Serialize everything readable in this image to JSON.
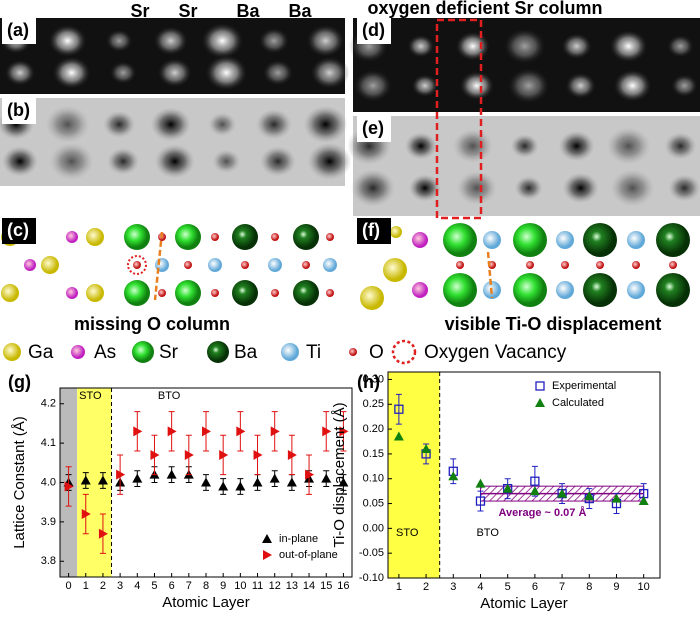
{
  "panels": [
    "(a)",
    "(b)",
    "(c)",
    "(d)",
    "(e)",
    "(f)"
  ],
  "column_labels": [
    "Sr",
    "Sr",
    "Ba",
    "Ba"
  ],
  "captions": {
    "top_right": "oxygen deficient Sr column",
    "left": "missing O column",
    "right": "visible Ti-O displacement"
  },
  "legend": [
    {
      "label": "Ga",
      "color": "#e8d800"
    },
    {
      "label": "As",
      "color": "#e040e0"
    },
    {
      "label": "Sr",
      "color": "#30e030"
    },
    {
      "label": "Ba",
      "color": "#106010"
    },
    {
      "label": "Ti",
      "color": "#80c0e8"
    },
    {
      "label": "O",
      "color": "#e02020"
    },
    {
      "label": "Oxygen Vacancy",
      "color": "#e02020"
    }
  ],
  "chart_data": [
    {
      "type": "scatter",
      "panel": "(g)",
      "x_label": "Atomic Layer",
      "y_label": "Lattice Constant (Å)",
      "x": [
        0,
        1,
        2,
        3,
        4,
        5,
        6,
        7,
        8,
        9,
        10,
        11,
        12,
        13,
        14,
        15,
        16
      ],
      "xlim": [
        -0.5,
        16.5
      ],
      "xticks": [
        0,
        1,
        2,
        3,
        4,
        5,
        6,
        7,
        8,
        9,
        10,
        11,
        12,
        13,
        14,
        15,
        16
      ],
      "ylim": [
        3.76,
        4.24
      ],
      "yticks": [
        3.8,
        3.9,
        {
          "value": 4.0,
          "label": "4.0"
        },
        4.1,
        4.2
      ],
      "regions": [
        {
          "xlim": [
            -0.5,
            0.5
          ],
          "color": "#bbbbbb"
        },
        {
          "xlim": [
            0.5,
            2.5
          ],
          "color": "#ffff66",
          "label": "STO",
          "dashed": true
        }
      ],
      "annotation": "BTO",
      "legend_corner": "lower right",
      "series": [
        {
          "name": "in-plane",
          "color": "#000000",
          "marker": "triangle-up",
          "values": [
            4.0,
            4.005,
            4.005,
            4.0,
            4.01,
            4.02,
            4.02,
            4.02,
            4.0,
            3.99,
            3.99,
            4.0,
            4.01,
            4.0,
            4.01,
            4.01,
            4.0
          ],
          "errors": [
            0.02,
            0.02,
            0.02,
            0.02,
            0.02,
            0.02,
            0.02,
            0.02,
            0.02,
            0.02,
            0.02,
            0.02,
            0.02,
            0.02,
            0.02,
            0.02,
            0.02
          ]
        },
        {
          "name": "out-of-plane",
          "color": "#e01010",
          "marker": "triangle-right",
          "values": [
            3.99,
            3.92,
            3.87,
            4.02,
            4.13,
            4.07,
            4.13,
            4.07,
            4.13,
            4.07,
            4.13,
            4.07,
            4.13,
            4.07,
            4.02,
            4.13,
            4.13
          ],
          "errors": [
            0.05,
            0.05,
            0.05,
            0.05,
            0.05,
            0.05,
            0.05,
            0.05,
            0.05,
            0.05,
            0.05,
            0.05,
            0.05,
            0.05,
            0.05,
            0.05,
            0.05
          ]
        }
      ]
    },
    {
      "type": "scatter",
      "panel": "(h)",
      "x_label": "Atomic Layer",
      "y_label": "Ti-O displacement (Å)",
      "x": [
        1,
        2,
        3,
        4,
        5,
        6,
        7,
        8,
        9,
        10
      ],
      "xlim": [
        0.6,
        10.6
      ],
      "xticks": [
        1,
        2,
        3,
        4,
        5,
        6,
        7,
        8,
        9,
        10
      ],
      "ylim": [
        -0.1,
        0.315
      ],
      "yticks": [
        {
          "value": -0.1,
          "label": "-0.10"
        },
        {
          "value": -0.05,
          "label": "-0.05"
        },
        {
          "value": 0,
          "label": "0.00"
        },
        {
          "value": 0.05,
          "label": "0.05"
        },
        {
          "value": 0.1,
          "label": "0.10"
        },
        {
          "value": 0.15,
          "label": "0.15"
        },
        {
          "value": 0.2,
          "label": "0.20"
        },
        {
          "value": 0.25,
          "label": "0.25"
        },
        {
          "value": 0.3,
          "label": "0.30"
        }
      ],
      "regions": [
        {
          "xlim": [
            0.6,
            2.5
          ],
          "color": "#ffff44",
          "label": "STO",
          "dashed": true
        }
      ],
      "annotation": "BTO",
      "legend_corner": "upper right",
      "band": {
        "xlim": [
          4,
          10
        ],
        "ylim": [
          0.055,
          0.085
        ],
        "value": 0.07,
        "color": "#800080",
        "label": "Average ~ 0.07 Å"
      },
      "series": [
        {
          "name": "Experimental",
          "color": "#2020c0",
          "marker": "square-open",
          "values": [
            0.24,
            0.15,
            0.115,
            0.055,
            0.08,
            0.095,
            0.07,
            0.06,
            0.05,
            0.07
          ],
          "errors": [
            0.03,
            0.02,
            0.025,
            0.02,
            0.02,
            0.03,
            0.02,
            0.02,
            0.02,
            0.02
          ]
        },
        {
          "name": "Calculated",
          "color": "#108010",
          "marker": "triangle-up",
          "values": [
            0.185,
            0.16,
            0.105,
            0.09,
            0.08,
            0.075,
            0.07,
            0.065,
            0.06,
            0.055
          ]
        }
      ]
    }
  ]
}
